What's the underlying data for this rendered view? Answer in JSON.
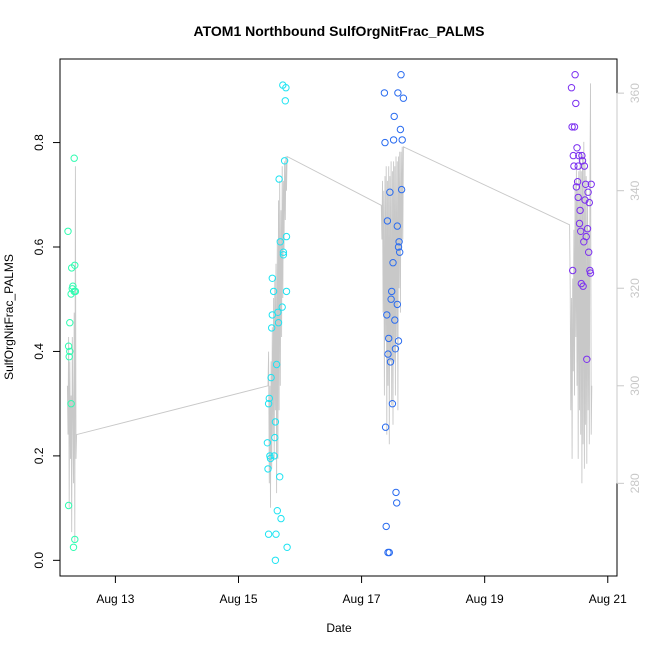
{
  "chart_data": {
    "type": "scatter",
    "title": "ATOM1 Northbound SulfOrgNitFrac_PALMS",
    "xlabel": "Date",
    "ylabel": "SulfOrgNitFrac_PALMS",
    "x_unit": "day of August",
    "xlim": [
      12.1,
      21.15
    ],
    "ylim": [
      -0.03,
      0.96
    ],
    "y_ticks": [
      0.0,
      0.2,
      0.4,
      0.6,
      0.8
    ],
    "x_ticks": [
      {
        "value": 13,
        "label": "Aug 13"
      },
      {
        "value": 15,
        "label": "Aug 15"
      },
      {
        "value": 17,
        "label": "Aug 17"
      },
      {
        "value": 19,
        "label": "Aug 19"
      },
      {
        "value": 21,
        "label": "Aug 21"
      }
    ],
    "right_axis": {
      "ylim": [
        261,
        367
      ],
      "ticks": [
        280,
        300,
        320,
        340,
        360
      ],
      "color": "#c8c8c8"
    },
    "grid": false,
    "legend": "none",
    "series": [
      {
        "color": "#2efcb0",
        "points": [
          [
            12.23,
            0.63
          ],
          [
            12.24,
            0.41
          ],
          [
            12.24,
            0.105
          ],
          [
            12.25,
            0.39
          ],
          [
            12.26,
            0.455
          ],
          [
            12.26,
            0.4
          ],
          [
            12.28,
            0.51
          ],
          [
            12.28,
            0.3
          ],
          [
            12.29,
            0.56
          ],
          [
            12.3,
            0.52
          ],
          [
            12.31,
            0.525
          ],
          [
            12.32,
            0.025
          ],
          [
            12.33,
            0.77
          ],
          [
            12.33,
            0.515
          ],
          [
            12.34,
            0.565
          ],
          [
            12.34,
            0.04
          ],
          [
            12.35,
            0.515
          ]
        ]
      },
      {
        "color": "#1ee3f2",
        "points": [
          [
            15.47,
            0.225
          ],
          [
            15.48,
            0.175
          ],
          [
            15.49,
            0.05
          ],
          [
            15.49,
            0.3
          ],
          [
            15.5,
            0.31
          ],
          [
            15.51,
            0.2
          ],
          [
            15.52,
            0.195
          ],
          [
            15.53,
            0.35
          ],
          [
            15.54,
            0.445
          ],
          [
            15.55,
            0.54
          ],
          [
            15.55,
            0.47
          ],
          [
            15.57,
            0.515
          ],
          [
            15.58,
            0.2
          ],
          [
            15.59,
            0.235
          ],
          [
            15.6,
            0.265
          ],
          [
            15.61,
            0.05
          ],
          [
            15.62,
            0.375
          ],
          [
            15.63,
            0.095
          ],
          [
            15.64,
            0.475
          ],
          [
            15.65,
            0.455
          ],
          [
            15.66,
            0.73
          ],
          [
            15.67,
            0.16
          ],
          [
            15.68,
            0.61
          ],
          [
            15.69,
            0.08
          ],
          [
            15.71,
            0.485
          ],
          [
            15.72,
            0.91
          ],
          [
            15.73,
            0.585
          ],
          [
            15.73,
            0.59
          ],
          [
            15.75,
            0.765
          ],
          [
            15.76,
            0.88
          ],
          [
            15.77,
            0.905
          ],
          [
            15.78,
            0.515
          ],
          [
            15.78,
            0.62
          ],
          [
            15.79,
            0.025
          ],
          [
            15.6,
            0.0
          ]
        ]
      },
      {
        "color": "#2a6cf0",
        "points": [
          [
            17.37,
            0.895
          ],
          [
            17.38,
            0.8
          ],
          [
            17.39,
            0.255
          ],
          [
            17.4,
            0.065
          ],
          [
            17.41,
            0.47
          ],
          [
            17.42,
            0.65
          ],
          [
            17.43,
            0.395
          ],
          [
            17.44,
            0.425
          ],
          [
            17.45,
            0.015
          ],
          [
            17.46,
            0.705
          ],
          [
            17.47,
            0.38
          ],
          [
            17.48,
            0.5
          ],
          [
            17.49,
            0.515
          ],
          [
            17.5,
            0.3
          ],
          [
            17.51,
            0.57
          ],
          [
            17.52,
            0.805
          ],
          [
            17.53,
            0.85
          ],
          [
            17.54,
            0.46
          ],
          [
            17.55,
            0.405
          ],
          [
            17.56,
            0.13
          ],
          [
            17.57,
            0.11
          ],
          [
            17.58,
            0.64
          ],
          [
            17.59,
            0.895
          ],
          [
            17.6,
            0.6
          ],
          [
            17.61,
            0.61
          ],
          [
            17.62,
            0.59
          ],
          [
            17.63,
            0.825
          ],
          [
            17.64,
            0.93
          ],
          [
            17.65,
            0.71
          ],
          [
            17.66,
            0.805
          ],
          [
            17.68,
            0.885
          ],
          [
            17.58,
            0.49
          ],
          [
            17.6,
            0.42
          ],
          [
            17.43,
            0.015
          ]
        ]
      },
      {
        "color": "#7b2ff0",
        "points": [
          [
            20.41,
            0.905
          ],
          [
            20.42,
            0.83
          ],
          [
            20.43,
            0.555
          ],
          [
            20.44,
            0.775
          ],
          [
            20.45,
            0.755
          ],
          [
            20.46,
            0.83
          ],
          [
            20.47,
            0.93
          ],
          [
            20.48,
            0.875
          ],
          [
            20.49,
            0.715
          ],
          [
            20.5,
            0.79
          ],
          [
            20.51,
            0.725
          ],
          [
            20.52,
            0.755
          ],
          [
            20.53,
            0.775
          ],
          [
            20.54,
            0.645
          ],
          [
            20.55,
            0.67
          ],
          [
            20.56,
            0.63
          ],
          [
            20.57,
            0.53
          ],
          [
            20.58,
            0.775
          ],
          [
            20.59,
            0.765
          ],
          [
            20.6,
            0.525
          ],
          [
            20.61,
            0.61
          ],
          [
            20.62,
            0.755
          ],
          [
            20.63,
            0.69
          ],
          [
            20.64,
            0.72
          ],
          [
            20.65,
            0.62
          ],
          [
            20.66,
            0.385
          ],
          [
            20.67,
            0.635
          ],
          [
            20.68,
            0.705
          ],
          [
            20.69,
            0.59
          ],
          [
            20.7,
            0.685
          ],
          [
            20.71,
            0.555
          ],
          [
            20.72,
            0.55
          ],
          [
            20.73,
            0.72
          ],
          [
            20.52,
            0.695
          ]
        ]
      }
    ],
    "gray_line": {
      "color": "#c8c8c8",
      "axis": "right",
      "points": [
        [
          12.22,
          300
        ],
        [
          12.23,
          290
        ],
        [
          12.24,
          310
        ],
        [
          12.25,
          275
        ],
        [
          12.26,
          305
        ],
        [
          12.27,
          285
        ],
        [
          12.28,
          298
        ],
        [
          12.29,
          270
        ],
        [
          12.3,
          310
        ],
        [
          12.31,
          295
        ],
        [
          12.32,
          280
        ],
        [
          12.33,
          315
        ],
        [
          12.34,
          268
        ],
        [
          12.35,
          345
        ],
        [
          12.36,
          285
        ],
        [
          12.37,
          290
        ],
        [
          15.48,
          300
        ],
        [
          15.49,
          307
        ],
        [
          15.5,
          280
        ],
        [
          15.51,
          300
        ],
        [
          15.52,
          275
        ],
        [
          15.53,
          305
        ],
        [
          15.54,
          283
        ],
        [
          15.55,
          312
        ],
        [
          15.56,
          290
        ],
        [
          15.57,
          318
        ],
        [
          15.58,
          285
        ],
        [
          15.59,
          322
        ],
        [
          15.6,
          295
        ],
        [
          15.61,
          325
        ],
        [
          15.62,
          278
        ],
        [
          15.63,
          330
        ],
        [
          15.64,
          285
        ],
        [
          15.65,
          338
        ],
        [
          15.66,
          295
        ],
        [
          15.67,
          342
        ],
        [
          15.68,
          300
        ],
        [
          15.69,
          336
        ],
        [
          15.7,
          310
        ],
        [
          15.71,
          345
        ],
        [
          15.72,
          318
        ],
        [
          15.73,
          342
        ],
        [
          15.74,
          328
        ],
        [
          15.75,
          346
        ],
        [
          15.76,
          334
        ],
        [
          15.77,
          347
        ],
        [
          15.78,
          340
        ],
        [
          15.79,
          347
        ],
        [
          17.32,
          337
        ],
        [
          17.33,
          330
        ],
        [
          17.34,
          342
        ],
        [
          17.35,
          315
        ],
        [
          17.36,
          340
        ],
        [
          17.37,
          298
        ],
        [
          17.38,
          343
        ],
        [
          17.39,
          310
        ],
        [
          17.4,
          345
        ],
        [
          17.41,
          290
        ],
        [
          17.42,
          342
        ],
        [
          17.43,
          300
        ],
        [
          17.44,
          345
        ],
        [
          17.45,
          288
        ],
        [
          17.46,
          343
        ],
        [
          17.47,
          305
        ],
        [
          17.48,
          346
        ],
        [
          17.49,
          296
        ],
        [
          17.5,
          344
        ],
        [
          17.51,
          292
        ],
        [
          17.52,
          346
        ],
        [
          17.53,
          305
        ],
        [
          17.54,
          345
        ],
        [
          17.55,
          298
        ],
        [
          17.56,
          347
        ],
        [
          17.57,
          310
        ],
        [
          17.58,
          346
        ],
        [
          17.59,
          295
        ],
        [
          17.6,
          347
        ],
        [
          17.61,
          320
        ],
        [
          17.62,
          348
        ],
        [
          17.63,
          315
        ],
        [
          17.64,
          348
        ],
        [
          17.65,
          328
        ],
        [
          17.66,
          349
        ],
        [
          17.67,
          330
        ],
        [
          17.68,
          349
        ],
        [
          20.38,
          333
        ],
        [
          20.39,
          320
        ],
        [
          20.4,
          295
        ],
        [
          20.41,
          318
        ],
        [
          20.42,
          285
        ],
        [
          20.43,
          322
        ],
        [
          20.44,
          303
        ],
        [
          20.45,
          332
        ],
        [
          20.46,
          298
        ],
        [
          20.47,
          342
        ],
        [
          20.48,
          310
        ],
        [
          20.49,
          345
        ],
        [
          20.5,
          300
        ],
        [
          20.51,
          340
        ],
        [
          20.52,
          285
        ],
        [
          20.53,
          344
        ],
        [
          20.54,
          295
        ],
        [
          20.55,
          348
        ],
        [
          20.56,
          290
        ],
        [
          20.57,
          344
        ],
        [
          20.58,
          280
        ],
        [
          20.59,
          347
        ],
        [
          20.6,
          288
        ],
        [
          20.61,
          350
        ],
        [
          20.62,
          283
        ],
        [
          20.63,
          346
        ],
        [
          20.64,
          292
        ],
        [
          20.65,
          343
        ],
        [
          20.66,
          284
        ],
        [
          20.67,
          338
        ],
        [
          20.68,
          295
        ],
        [
          20.69,
          332
        ],
        [
          20.7,
          288
        ],
        [
          20.71,
          340
        ],
        [
          20.72,
          362
        ],
        [
          20.73,
          290
        ],
        [
          20.74,
          300
        ]
      ]
    }
  }
}
